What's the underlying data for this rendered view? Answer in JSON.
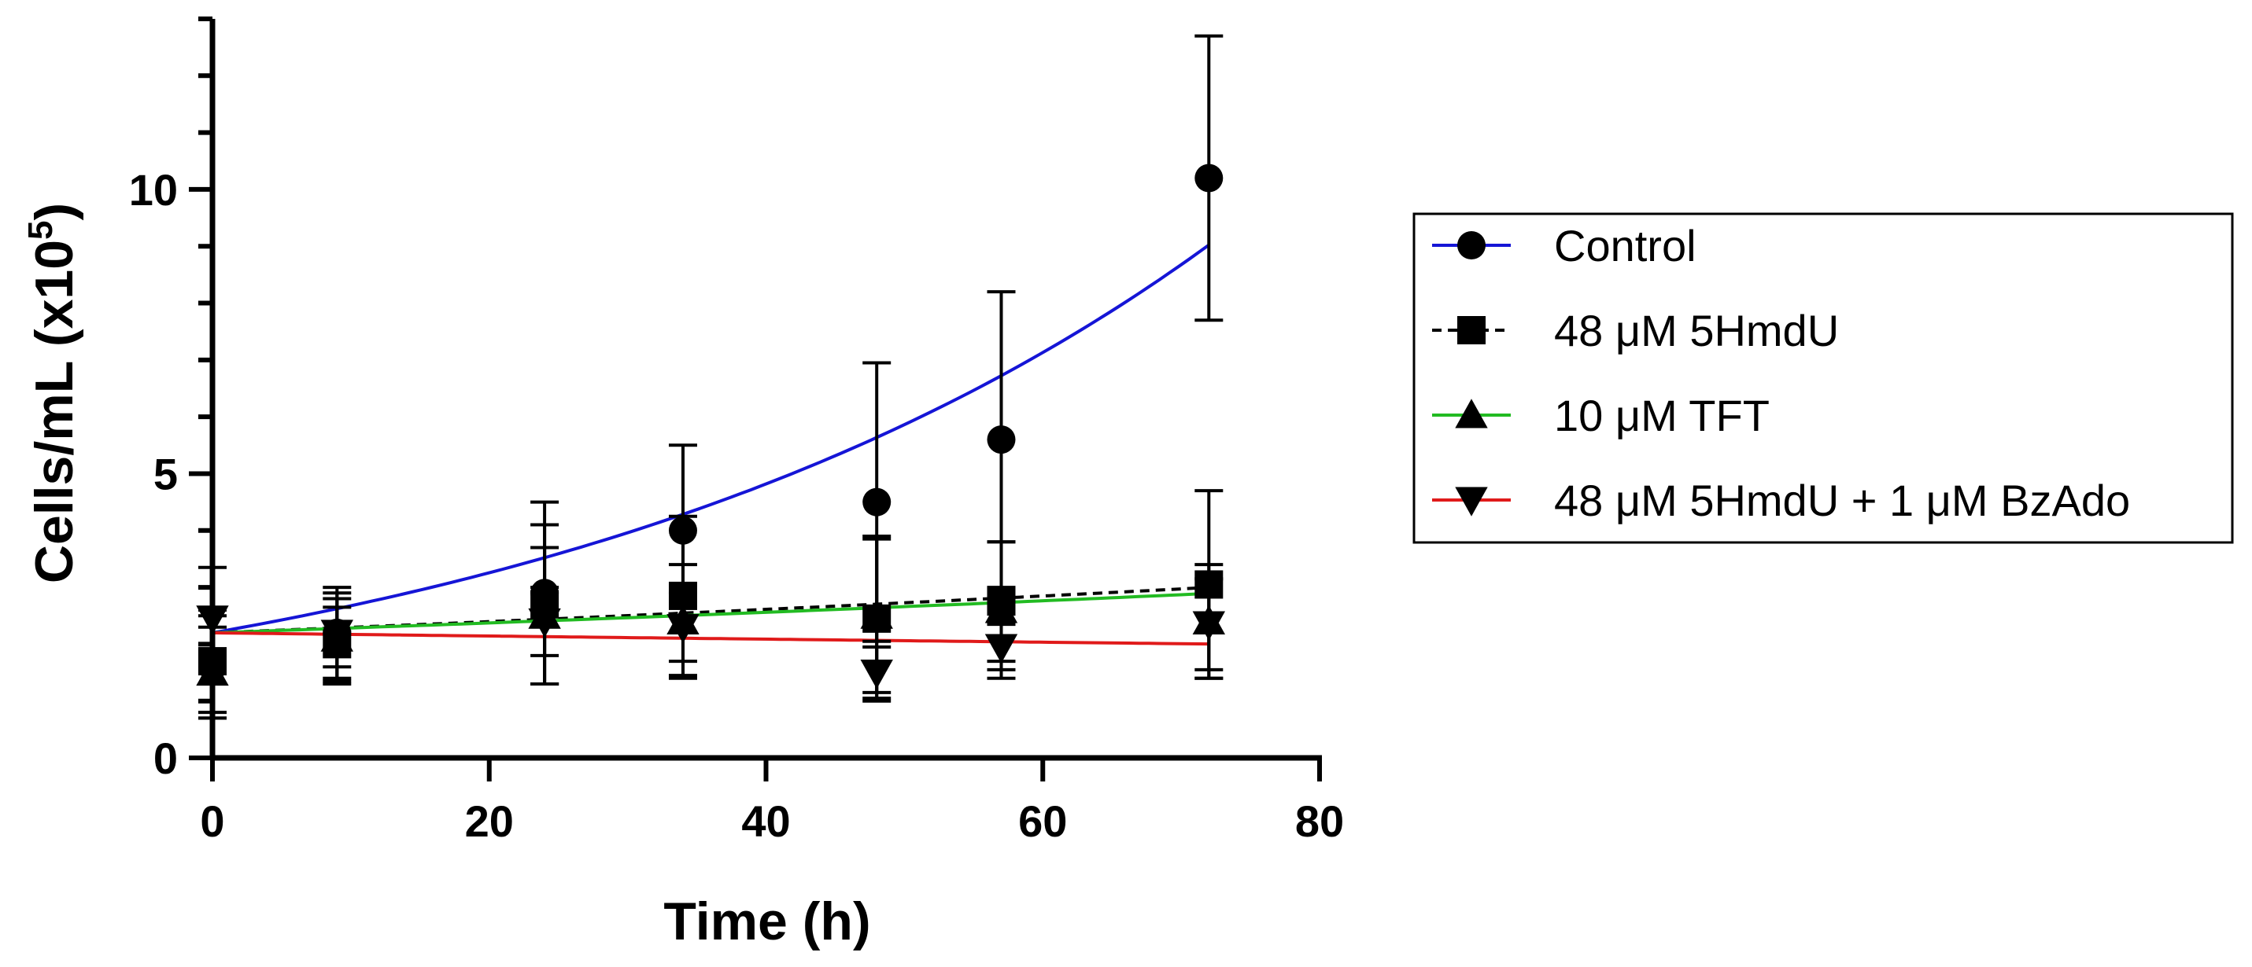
{
  "chart_data": {
    "type": "scatter",
    "title": "",
    "xlabel": "Time (h)",
    "ylabel_main": "Cells/mL (x10",
    "ylabel_sup": "5",
    "ylabel_close": ")",
    "xlim": [
      0,
      80
    ],
    "ylim": [
      0,
      13
    ],
    "xticks": [
      0,
      20,
      40,
      60,
      80
    ],
    "xtick_labels": [
      "0",
      "20",
      "40",
      "60",
      "80"
    ],
    "yticks": [
      0,
      5,
      10
    ],
    "ytick_labels": [
      "0",
      "5",
      "10"
    ],
    "legend_position": "right",
    "series": [
      {
        "name": "Control",
        "marker": "circle",
        "line_color": "#1515d6",
        "line_style": "solid",
        "x": [
          0,
          9,
          24,
          34,
          48,
          57,
          72
        ],
        "y": [
          1.6,
          2.2,
          2.9,
          4.0,
          4.5,
          5.6,
          10.2
        ],
        "err": [
          0.9,
          0.8,
          1.6,
          1.5,
          2.45,
          2.6,
          2.5
        ],
        "fit": {
          "a": 2.2,
          "b": 0.0196
        }
      },
      {
        "name": "48 μM 5HmdU",
        "marker": "square",
        "line_color": "#000000",
        "line_style": "dashed",
        "x": [
          0,
          9,
          24,
          34,
          48,
          57,
          72
        ],
        "y": [
          1.7,
          2.0,
          2.7,
          2.85,
          2.45,
          2.75,
          3.05
        ],
        "err": [
          0.9,
          0.65,
          1.4,
          1.4,
          1.45,
          1.05,
          1.65
        ],
        "fit": {
          "a": 2.2,
          "b": 0.0043
        }
      },
      {
        "name": "10 μM TFT",
        "marker": "triangle-up",
        "line_color": "#22bb22",
        "line_style": "solid",
        "x": [
          0,
          9,
          24,
          34,
          48,
          57,
          72
        ],
        "y": [
          1.5,
          2.1,
          2.5,
          2.4,
          2.5,
          2.6,
          2.4
        ],
        "err": [
          0.8,
          0.8,
          1.2,
          1.0,
          1.35,
          1.2,
          1.0
        ],
        "fit": {
          "a": 2.2,
          "b": 0.0038
        }
      },
      {
        "name": "48 μM 5HmdU + 1 μM BzAdo",
        "marker": "triangle-down",
        "line_color": "#e01a1a",
        "line_style": "solid",
        "x": [
          0,
          9,
          24,
          34,
          48,
          57,
          72
        ],
        "y": [
          2.45,
          2.2,
          2.4,
          2.3,
          1.5,
          1.95,
          2.35
        ],
        "err": [
          0.9,
          0.6,
          0.6,
          0.6,
          0.45,
          0.4,
          0.8
        ],
        "fit": {
          "a": 2.2,
          "b": -0.0013
        }
      }
    ]
  }
}
